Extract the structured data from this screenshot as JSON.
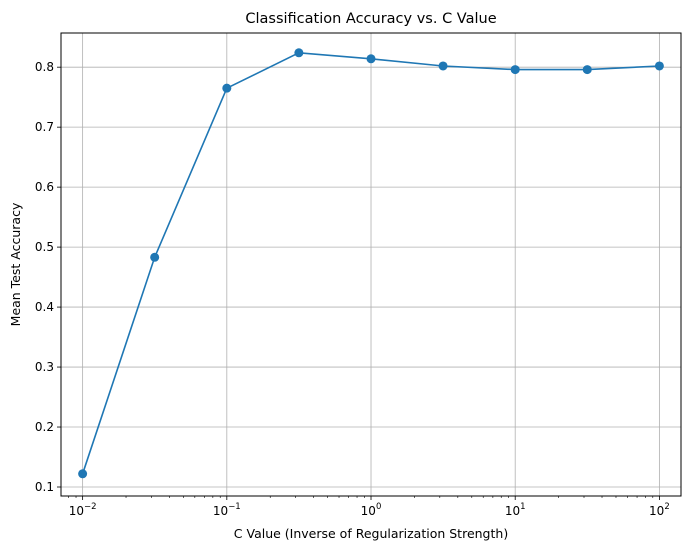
{
  "chart_data": {
    "type": "line",
    "title": "Classification Accuracy vs. C Value",
    "xlabel": "C Value (Inverse of Regularization Strength)",
    "ylabel": "Mean Test Accuracy",
    "xscale": "log",
    "xlim": [
      0.00708,
      141.2
    ],
    "ylim": [
      0.085,
      0.857
    ],
    "grid": true,
    "line_color": "#1f77b4",
    "series": [
      {
        "x": [
          0.01,
          0.0316,
          0.1,
          0.316,
          1,
          3.16,
          10,
          31.6,
          100
        ],
        "values": [
          0.122,
          0.483,
          0.765,
          0.824,
          0.814,
          0.802,
          0.796,
          0.796,
          0.802
        ]
      }
    ],
    "x_ticks": [
      {
        "value": 0.01,
        "base": "10",
        "exp": "−2"
      },
      {
        "value": 0.1,
        "base": "10",
        "exp": "−1"
      },
      {
        "value": 1,
        "base": "10",
        "exp": "0"
      },
      {
        "value": 10,
        "base": "10",
        "exp": "1"
      },
      {
        "value": 100,
        "base": "10",
        "exp": "2"
      }
    ],
    "y_ticks": [
      {
        "value": 0.1,
        "label": "0.1"
      },
      {
        "value": 0.2,
        "label": "0.2"
      },
      {
        "value": 0.3,
        "label": "0.3"
      },
      {
        "value": 0.4,
        "label": "0.4"
      },
      {
        "value": 0.5,
        "label": "0.5"
      },
      {
        "value": 0.6,
        "label": "0.6"
      },
      {
        "value": 0.7,
        "label": "0.7"
      },
      {
        "value": 0.8,
        "label": "0.8"
      }
    ]
  }
}
